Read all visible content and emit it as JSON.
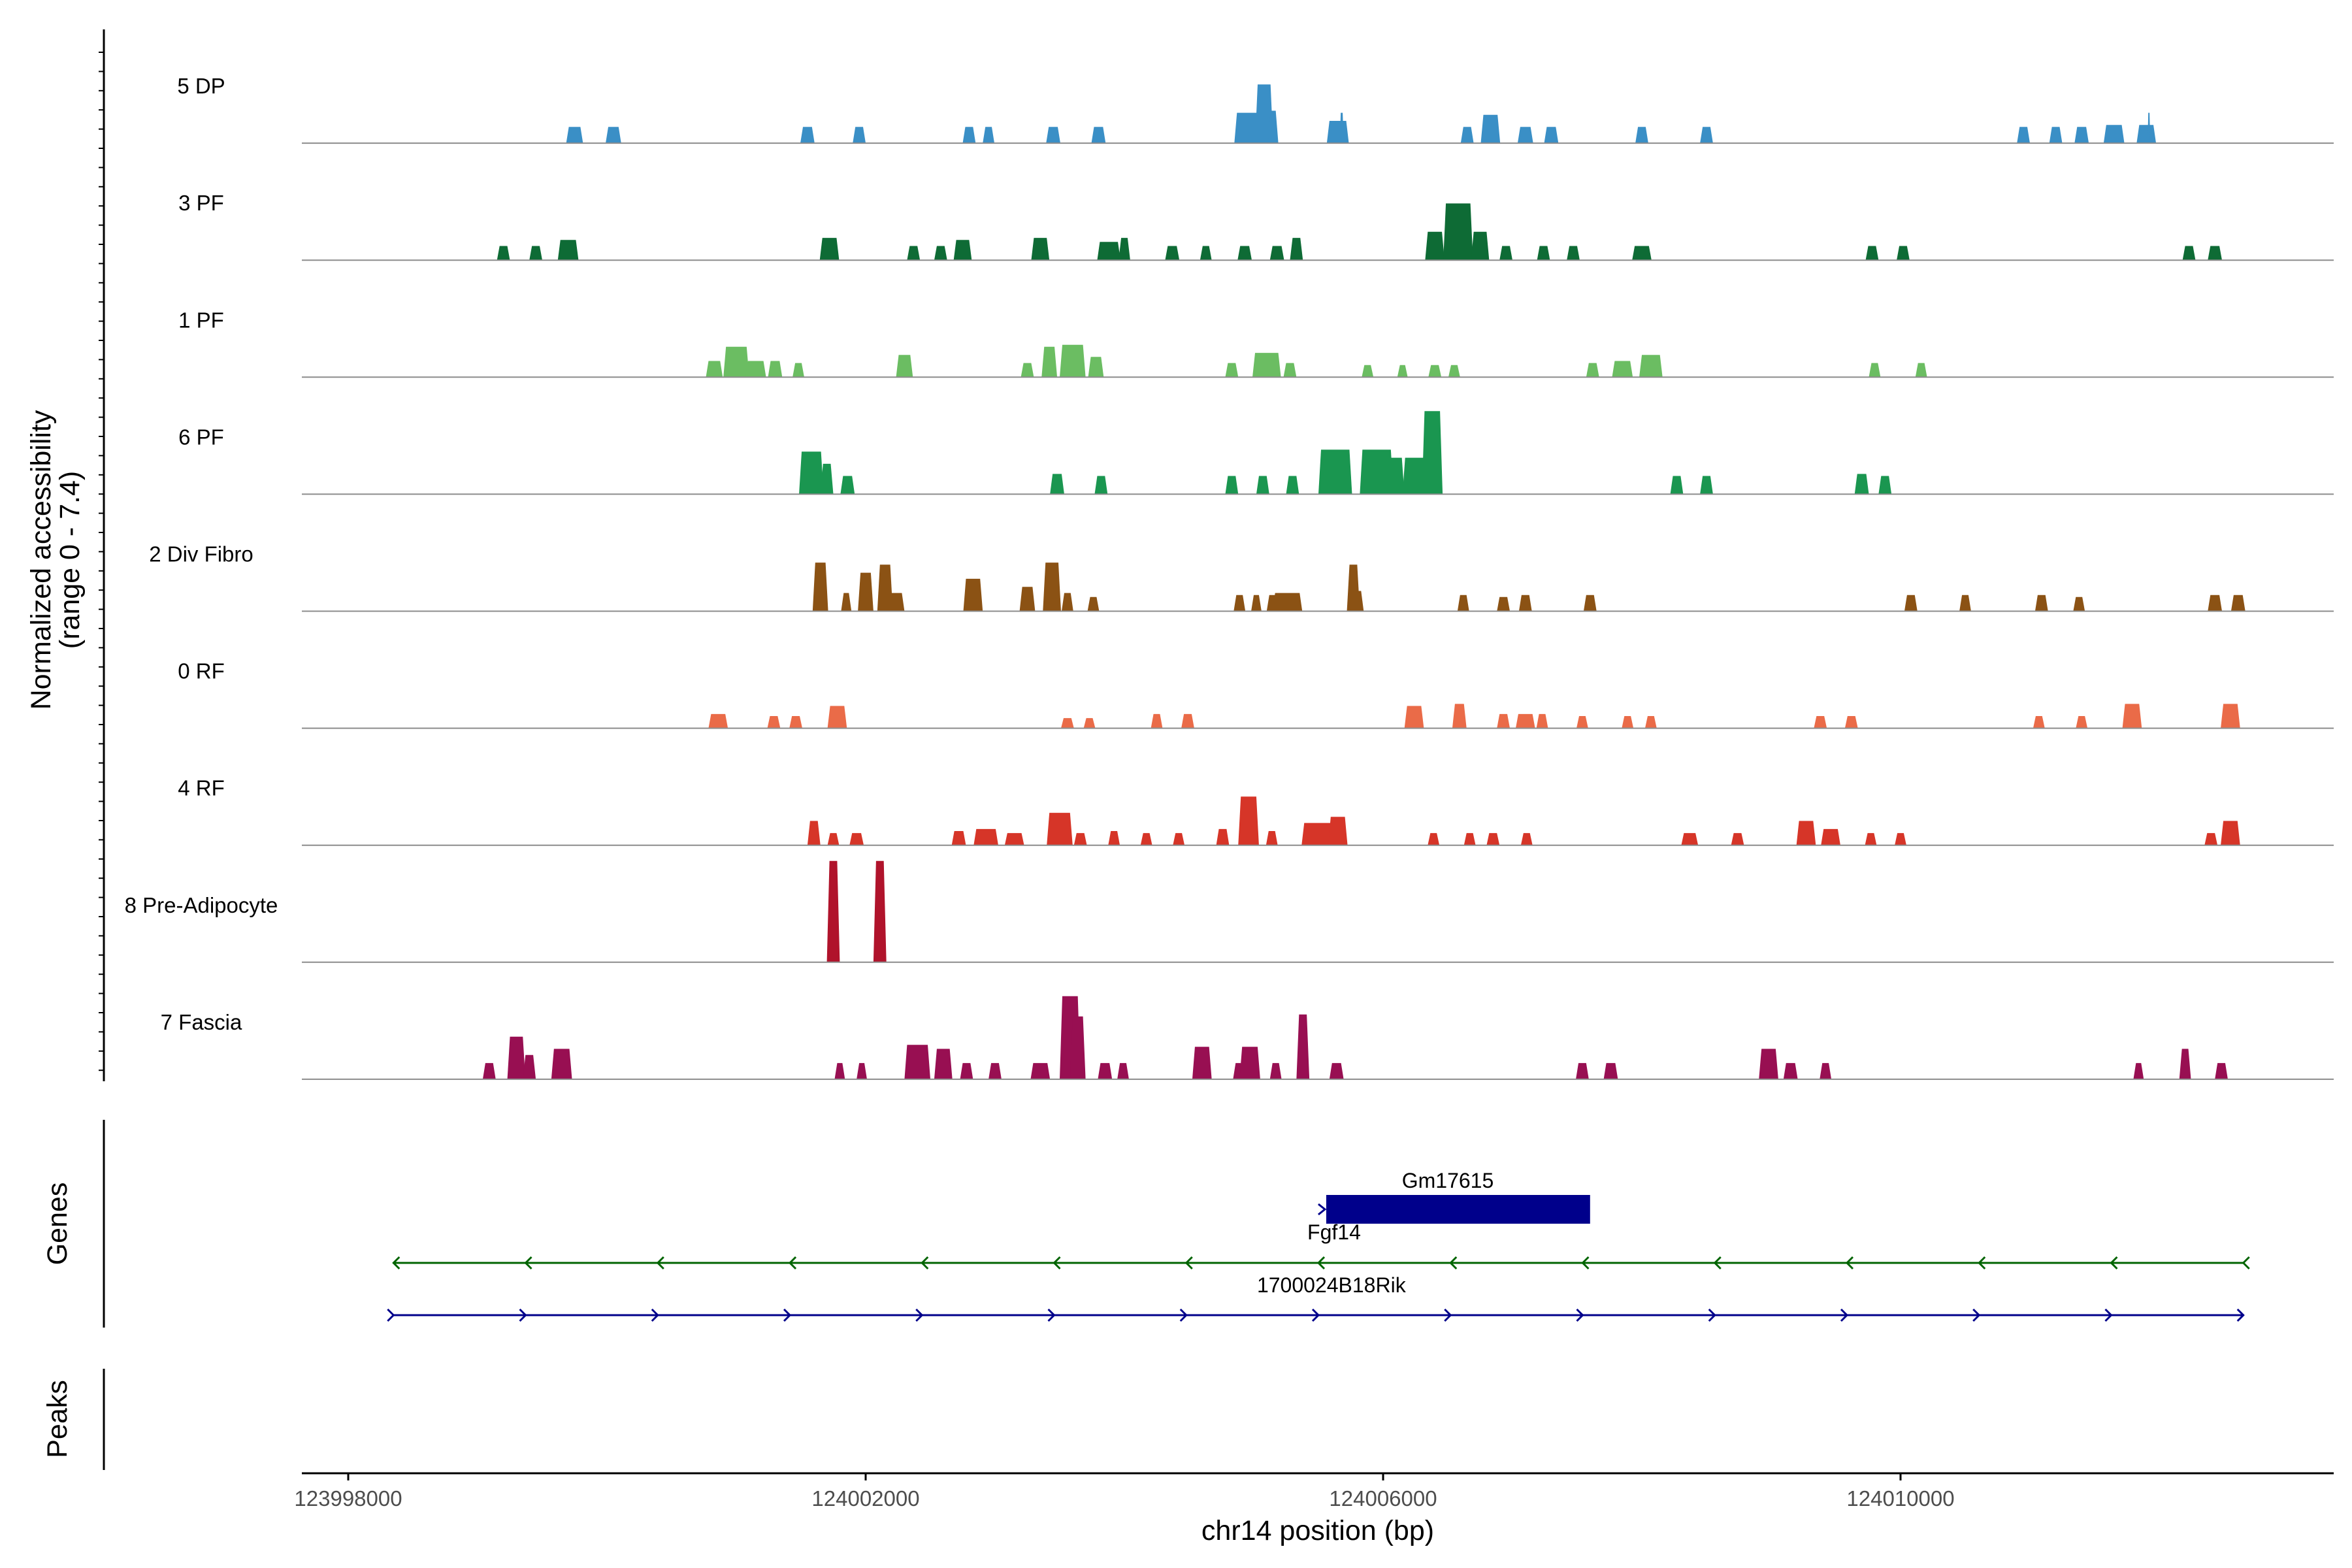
{
  "chart_data": {
    "type": "area",
    "title": "",
    "ylabel": "Normalized accessibility\n(range 0 - 7.4)",
    "ylim": [
      0,
      7.4
    ],
    "xlabel": "chr14 position (bp)",
    "xlim": [
      123997650,
      124013300
    ],
    "xticks": [
      123998000,
      124002000,
      124006000,
      124010000
    ],
    "tracks": [
      {
        "name": "5 DP",
        "color": "#3a8fc6",
        "peaks": [
          [
            123999750,
            130,
            0.16
          ],
          [
            124000050,
            120,
            0.16
          ],
          [
            124001550,
            110,
            0.16
          ],
          [
            124001950,
            100,
            0.16
          ],
          [
            124002800,
            100,
            0.16
          ],
          [
            124002950,
            90,
            0.16
          ],
          [
            124003450,
            110,
            0.16
          ],
          [
            124003800,
            110,
            0.16
          ],
          [
            124004980,
            260,
            0.3
          ],
          [
            124005080,
            140,
            0.58
          ],
          [
            124005150,
            80,
            0.32
          ],
          [
            124005650,
            170,
            0.22
          ],
          [
            124005680,
            30,
            0.3
          ],
          [
            124006650,
            100,
            0.16
          ],
          [
            124006830,
            150,
            0.28
          ],
          [
            124007100,
            120,
            0.16
          ],
          [
            124007300,
            110,
            0.16
          ],
          [
            124008000,
            100,
            0.16
          ],
          [
            124008500,
            100,
            0.16
          ],
          [
            124010950,
            100,
            0.16
          ],
          [
            124011200,
            100,
            0.16
          ],
          [
            124011400,
            110,
            0.16
          ],
          [
            124011650,
            160,
            0.18
          ],
          [
            124011900,
            150,
            0.18
          ],
          [
            124011920,
            20,
            0.3
          ]
        ]
      },
      {
        "name": "3 PF",
        "color": "#0e6b35",
        "peaks": [
          [
            123999200,
            100,
            0.14
          ],
          [
            123999450,
            100,
            0.14
          ],
          [
            123999700,
            160,
            0.2
          ],
          [
            124001720,
            150,
            0.22
          ],
          [
            124002370,
            100,
            0.14
          ],
          [
            124002580,
            100,
            0.14
          ],
          [
            124002750,
            140,
            0.2
          ],
          [
            124003350,
            140,
            0.22
          ],
          [
            124003880,
            180,
            0.18
          ],
          [
            124004000,
            90,
            0.22
          ],
          [
            124004370,
            110,
            0.14
          ],
          [
            124004630,
            90,
            0.14
          ],
          [
            124004930,
            110,
            0.14
          ],
          [
            124005180,
            110,
            0.14
          ],
          [
            124005330,
            100,
            0.22
          ],
          [
            124006400,
            150,
            0.28
          ],
          [
            124006580,
            230,
            0.56
          ],
          [
            124006750,
            140,
            0.28
          ],
          [
            124006950,
            100,
            0.14
          ],
          [
            124007240,
            100,
            0.14
          ],
          [
            124007470,
            100,
            0.14
          ],
          [
            124008000,
            150,
            0.14
          ],
          [
            124009780,
            100,
            0.14
          ],
          [
            124010020,
            100,
            0.14
          ],
          [
            124012230,
            100,
            0.14
          ],
          [
            124012430,
            110,
            0.14
          ]
        ]
      },
      {
        "name": "1 PF",
        "color": "#6bbd62",
        "peaks": [
          [
            124000830,
            130,
            0.16
          ],
          [
            124001000,
            200,
            0.3
          ],
          [
            124001150,
            160,
            0.16
          ],
          [
            124001300,
            110,
            0.16
          ],
          [
            124001480,
            90,
            0.14
          ],
          [
            124002300,
            130,
            0.22
          ],
          [
            124003250,
            100,
            0.14
          ],
          [
            124003420,
            120,
            0.3
          ],
          [
            124003600,
            200,
            0.32
          ],
          [
            124003780,
            120,
            0.2
          ],
          [
            124004830,
            100,
            0.14
          ],
          [
            124005100,
            220,
            0.24
          ],
          [
            124005280,
            100,
            0.14
          ],
          [
            124005880,
            90,
            0.12
          ],
          [
            124006150,
            80,
            0.12
          ],
          [
            124006400,
            100,
            0.12
          ],
          [
            124006550,
            90,
            0.12
          ],
          [
            124007620,
            100,
            0.14
          ],
          [
            124007850,
            160,
            0.16
          ],
          [
            124008070,
            180,
            0.22
          ],
          [
            124009800,
            90,
            0.14
          ],
          [
            124010160,
            90,
            0.14
          ]
        ]
      },
      {
        "name": "6 PF",
        "color": "#1a9650",
        "peaks": [
          [
            124001580,
            190,
            0.42
          ],
          [
            124001700,
            100,
            0.3
          ],
          [
            124001860,
            110,
            0.18
          ],
          [
            124003480,
            110,
            0.2
          ],
          [
            124003820,
            100,
            0.18
          ],
          [
            124004830,
            100,
            0.18
          ],
          [
            124005070,
            100,
            0.18
          ],
          [
            124005300,
            100,
            0.18
          ],
          [
            124005630,
            260,
            0.44
          ],
          [
            124005950,
            260,
            0.44
          ],
          [
            124006100,
            130,
            0.36
          ],
          [
            124006250,
            200,
            0.36
          ],
          [
            124006380,
            160,
            0.82
          ],
          [
            124008270,
            100,
            0.18
          ],
          [
            124008500,
            100,
            0.18
          ],
          [
            124009700,
            110,
            0.2
          ],
          [
            124009880,
            100,
            0.18
          ]
        ]
      },
      {
        "name": "2 Div Fibro",
        "color": "#8b5214",
        "peaks": [
          [
            124001650,
            120,
            0.48
          ],
          [
            124002000,
            120,
            0.38
          ],
          [
            124002150,
            120,
            0.46
          ],
          [
            124002200,
            200,
            0.18
          ],
          [
            124001850,
            80,
            0.18
          ],
          [
            124002830,
            150,
            0.32
          ],
          [
            124003250,
            120,
            0.24
          ],
          [
            124003440,
            140,
            0.48
          ],
          [
            124003560,
            90,
            0.18
          ],
          [
            124003760,
            90,
            0.14
          ],
          [
            124004890,
            90,
            0.16
          ],
          [
            124005020,
            80,
            0.16
          ],
          [
            124005260,
            230,
            0.18
          ],
          [
            124005150,
            100,
            0.16
          ],
          [
            124005770,
            100,
            0.46
          ],
          [
            124005800,
            100,
            0.2
          ],
          [
            124006620,
            90,
            0.16
          ],
          [
            124006930,
            100,
            0.14
          ],
          [
            124007100,
            100,
            0.16
          ],
          [
            124007600,
            100,
            0.16
          ],
          [
            124010080,
            100,
            0.16
          ],
          [
            124010500,
            90,
            0.16
          ],
          [
            124011090,
            100,
            0.16
          ],
          [
            124011380,
            90,
            0.14
          ],
          [
            124012430,
            110,
            0.16
          ],
          [
            124012610,
            110,
            0.16
          ]
        ]
      },
      {
        "name": "0 RF",
        "color": "#ea6b48",
        "peaks": [
          [
            124000860,
            150,
            0.14
          ],
          [
            124001290,
            100,
            0.12
          ],
          [
            124001460,
            100,
            0.12
          ],
          [
            124001780,
            150,
            0.22
          ],
          [
            124003560,
            100,
            0.1
          ],
          [
            124003730,
            90,
            0.1
          ],
          [
            124004250,
            90,
            0.14
          ],
          [
            124004490,
            100,
            0.14
          ],
          [
            124006240,
            150,
            0.22
          ],
          [
            124006590,
            110,
            0.24
          ],
          [
            124006930,
            100,
            0.14
          ],
          [
            124007100,
            150,
            0.14
          ],
          [
            124007230,
            90,
            0.14
          ],
          [
            124007540,
            90,
            0.12
          ],
          [
            124007890,
            90,
            0.12
          ],
          [
            124008070,
            90,
            0.12
          ],
          [
            124009380,
            100,
            0.12
          ],
          [
            124009620,
            100,
            0.12
          ],
          [
            124011070,
            90,
            0.12
          ],
          [
            124011400,
            90,
            0.12
          ],
          [
            124011790,
            150,
            0.24
          ],
          [
            124012550,
            150,
            0.24
          ]
        ]
      },
      {
        "name": "4 RF",
        "color": "#d63528",
        "peaks": [
          [
            124001600,
            100,
            0.24
          ],
          [
            124001750,
            90,
            0.12
          ],
          [
            124001930,
            110,
            0.12
          ],
          [
            124002720,
            110,
            0.14
          ],
          [
            124002930,
            190,
            0.16
          ],
          [
            124003150,
            150,
            0.12
          ],
          [
            124003500,
            200,
            0.32
          ],
          [
            124003660,
            100,
            0.12
          ],
          [
            124003920,
            90,
            0.14
          ],
          [
            124004170,
            90,
            0.12
          ],
          [
            124004420,
            90,
            0.12
          ],
          [
            124004760,
            100,
            0.16
          ],
          [
            124004960,
            160,
            0.48
          ],
          [
            124005140,
            90,
            0.14
          ],
          [
            124005520,
            300,
            0.22
          ],
          [
            124005650,
            150,
            0.28
          ],
          [
            124006390,
            90,
            0.12
          ],
          [
            124006670,
            90,
            0.12
          ],
          [
            124006850,
            100,
            0.12
          ],
          [
            124007110,
            90,
            0.12
          ],
          [
            124008370,
            130,
            0.12
          ],
          [
            124008740,
            100,
            0.12
          ],
          [
            124009270,
            150,
            0.24
          ],
          [
            124009460,
            150,
            0.16
          ],
          [
            124009770,
            90,
            0.12
          ],
          [
            124010000,
            90,
            0.12
          ],
          [
            124012400,
            100,
            0.12
          ],
          [
            124012550,
            150,
            0.24
          ]
        ]
      },
      {
        "name": "8 Pre-Adipocyte",
        "color": "#b0132b",
        "peaks": [
          [
            124001750,
            100,
            1.0
          ],
          [
            124002110,
            100,
            1.0
          ]
        ]
      },
      {
        "name": "7 Fascia",
        "color": "#980f52",
        "peaks": [
          [
            123999090,
            100,
            0.16
          ],
          [
            123999300,
            140,
            0.42
          ],
          [
            123999400,
            100,
            0.24
          ],
          [
            123999650,
            160,
            0.3
          ],
          [
            124001800,
            80,
            0.16
          ],
          [
            124001970,
            80,
            0.16
          ],
          [
            124002400,
            200,
            0.34
          ],
          [
            124002600,
            140,
            0.3
          ],
          [
            124002780,
            100,
            0.16
          ],
          [
            124003000,
            100,
            0.16
          ],
          [
            124003350,
            150,
            0.16
          ],
          [
            124003580,
            160,
            0.82
          ],
          [
            124003640,
            120,
            0.62
          ],
          [
            124003850,
            110,
            0.16
          ],
          [
            124003990,
            90,
            0.16
          ],
          [
            124004600,
            150,
            0.32
          ],
          [
            124004880,
            80,
            0.16
          ],
          [
            124004970,
            160,
            0.32
          ],
          [
            124005170,
            90,
            0.16
          ],
          [
            124005380,
            100,
            0.64
          ],
          [
            124005640,
            110,
            0.16
          ],
          [
            124007540,
            100,
            0.16
          ],
          [
            124007760,
            110,
            0.16
          ],
          [
            124008980,
            150,
            0.3
          ],
          [
            124009150,
            110,
            0.16
          ],
          [
            124009420,
            90,
            0.16
          ],
          [
            124011840,
            80,
            0.16
          ],
          [
            124012200,
            90,
            0.3
          ],
          [
            124012480,
            100,
            0.16
          ]
        ]
      }
    ],
    "genes": [
      {
        "name": "Gm17615",
        "start": 124005530,
        "end": 124007600,
        "strand": "+",
        "color": "#00008b",
        "label_anchor": 124006500
      },
      {
        "name": "Fgf14",
        "start": 123998350,
        "end": 124012650,
        "strand": "-",
        "color": "#006400",
        "label_anchor": 124005520
      },
      {
        "name": "1700024B18Rik",
        "start": 123998350,
        "end": 124012650,
        "strand": "+",
        "color": "#00008b",
        "label_anchor": 124005520
      }
    ],
    "gene_panel_label": "Genes",
    "peak_panel_label": "Peaks"
  }
}
